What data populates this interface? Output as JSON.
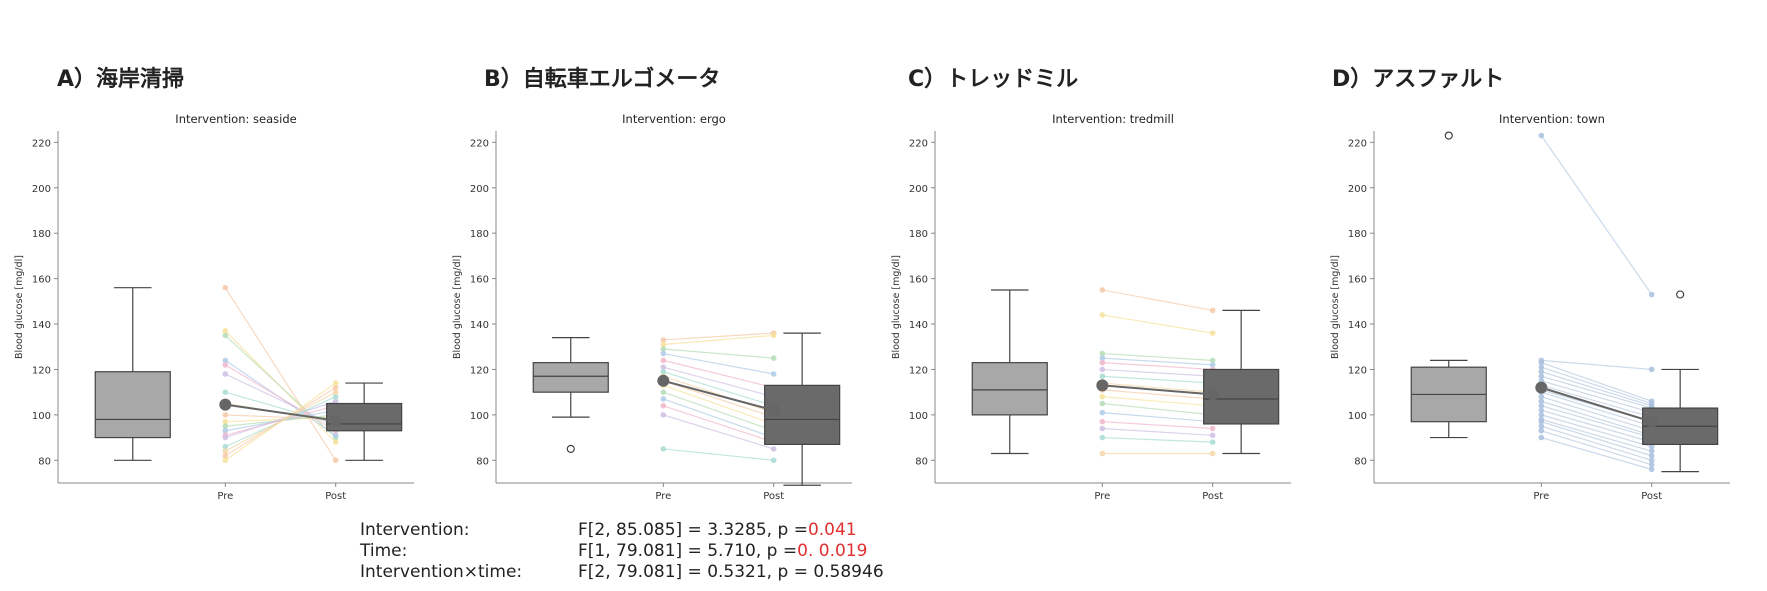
{
  "chart_data": [
    {
      "type": "box+line",
      "panel_label": "A）海岸清掃",
      "title": "Intervention: seaside",
      "ylabel": "Blood glucose [mg/dl]",
      "ylim": [
        70,
        225
      ],
      "yticks": [
        80,
        100,
        120,
        140,
        160,
        180,
        200,
        220
      ],
      "categories": [
        "Pre",
        "Post"
      ],
      "box_pre": {
        "whislo": 80,
        "q1": 90,
        "med": 98,
        "q3": 119,
        "whishi": 156,
        "fliers": []
      },
      "box_post": {
        "whislo": 80,
        "q1": 93,
        "med": 96,
        "q3": 105,
        "whishi": 114,
        "fliers": []
      },
      "mean": [
        104.5,
        97.5
      ],
      "individual_pre": [
        156,
        137,
        135,
        124,
        122,
        118,
        110,
        105,
        100,
        97,
        95,
        93,
        91,
        90,
        86,
        84,
        82,
        80
      ],
      "individual_post": [
        80,
        88,
        90,
        91,
        93,
        95,
        96,
        97,
        98,
        99,
        100,
        102,
        104,
        106,
        108,
        110,
        112,
        114
      ]
    },
    {
      "type": "box+line",
      "panel_label": "B）自転車エルゴメータ",
      "title": "Intervention: ergo",
      "ylabel": "Blood glucose [mg/dl]",
      "ylim": [
        70,
        225
      ],
      "yticks": [
        80,
        100,
        120,
        140,
        160,
        180,
        200,
        220
      ],
      "categories": [
        "Pre",
        "Post"
      ],
      "box_pre": {
        "whislo": 99,
        "q1": 110,
        "med": 117,
        "q3": 123,
        "whishi": 134,
        "fliers": [
          85
        ]
      },
      "box_post": {
        "whislo": 69,
        "q1": 87,
        "med": 98,
        "q3": 113,
        "whishi": 136,
        "fliers": []
      },
      "mean": [
        115,
        102
      ],
      "individual_pre": [
        133,
        131,
        129,
        127,
        124,
        121,
        119,
        117,
        115,
        113,
        110,
        107,
        104,
        100,
        85
      ],
      "individual_post": [
        136,
        135,
        125,
        118,
        112,
        108,
        104,
        101,
        99,
        96,
        93,
        90,
        88,
        85,
        80
      ]
    },
    {
      "type": "box+line",
      "panel_label": "C）トレッドミル",
      "title": "Intervention: tredmill",
      "ylabel": "Blood glucose [mg/dl]",
      "ylim": [
        70,
        225
      ],
      "yticks": [
        80,
        100,
        120,
        140,
        160,
        180,
        200,
        220
      ],
      "categories": [
        "Pre",
        "Post"
      ],
      "box_pre": {
        "whislo": 83,
        "q1": 100,
        "med": 111,
        "q3": 123,
        "whishi": 155,
        "fliers": []
      },
      "box_post": {
        "whislo": 83,
        "q1": 96,
        "med": 107,
        "q3": 120,
        "whishi": 146,
        "fliers": []
      },
      "mean": [
        113,
        109
      ],
      "individual_pre": [
        155,
        144,
        127,
        125,
        123,
        120,
        117,
        114,
        111,
        108,
        105,
        101,
        97,
        94,
        90,
        83
      ],
      "individual_post": [
        146,
        136,
        124,
        122,
        120,
        117,
        114,
        110,
        107,
        104,
        100,
        97,
        94,
        91,
        88,
        83
      ]
    },
    {
      "type": "box+line",
      "panel_label": "D）アスファルト",
      "title": "Intervention: town",
      "ylabel": "Blood glucose [mg/dl]",
      "ylim": [
        70,
        225
      ],
      "yticks": [
        80,
        100,
        120,
        140,
        160,
        180,
        200,
        220
      ],
      "categories": [
        "Pre",
        "Post"
      ],
      "box_pre": {
        "whislo": 90,
        "q1": 97,
        "med": 109,
        "q3": 121,
        "whishi": 124,
        "fliers": [
          223
        ]
      },
      "box_post": {
        "whislo": 75,
        "q1": 87,
        "med": 95,
        "q3": 103,
        "whishi": 120,
        "fliers": [
          153
        ]
      },
      "mean": [
        112,
        97
      ],
      "individual_pre": [
        223,
        124,
        123,
        121,
        119,
        117,
        115,
        113,
        111,
        110,
        108,
        106,
        104,
        102,
        100,
        98,
        97,
        95,
        93,
        90
      ],
      "individual_post": [
        153,
        120,
        106,
        105,
        104,
        103,
        101,
        99,
        97,
        95,
        93,
        91,
        90,
        88,
        86,
        84,
        82,
        80,
        78,
        76
      ]
    }
  ],
  "stats": [
    {
      "label": "Intervention:",
      "value": "F[2, 85.085] = 3.3285, p = ",
      "p": "0.041"
    },
    {
      "label": "Time:",
      "value": "F[1, 79.081] = 5.710, p = ",
      "p": "0. 0.019"
    },
    {
      "label": "Intervention×time:",
      "value": "F[2, 79.081] = 0.5321, p = 0.58946",
      "p": ""
    }
  ],
  "colors": {
    "box_pre": "#a8a8a8",
    "box_post": "#6a6a6a",
    "mean_line": "#666666",
    "lines_panel_d": "#a9c0dd",
    "lines_pastel": [
      "#f6c9a8",
      "#f7e29a",
      "#b5dcb5",
      "#aecbe8",
      "#f1b6c9",
      "#cfc0e4",
      "#a8dcd4",
      "#f3d6a6"
    ]
  }
}
